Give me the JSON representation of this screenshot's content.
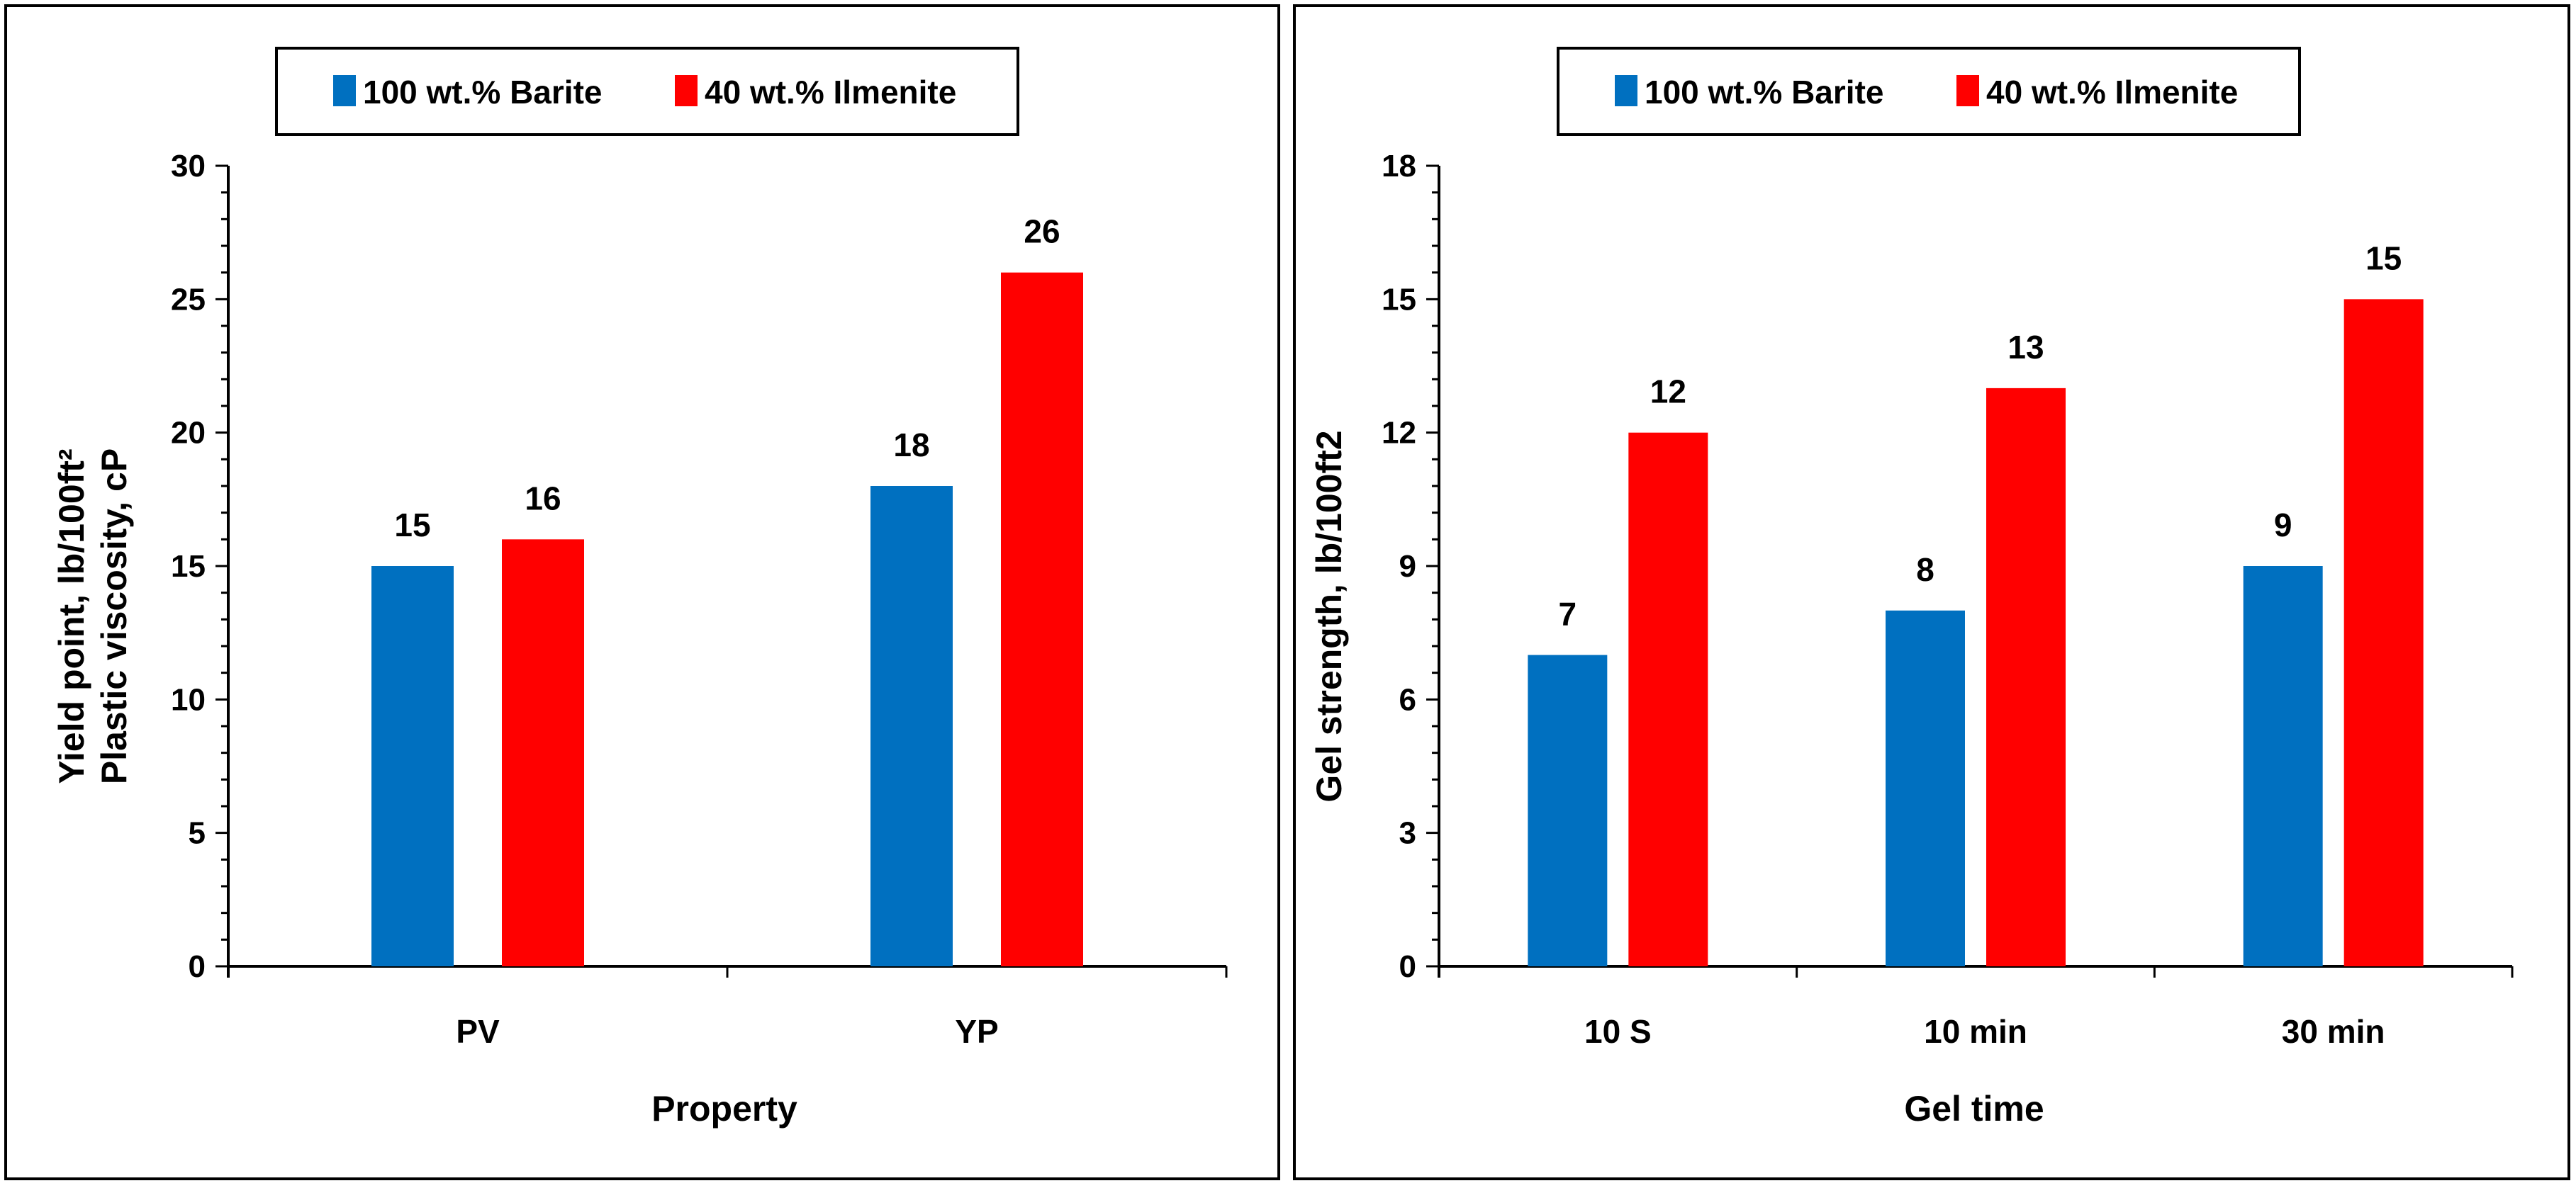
{
  "colors": {
    "barite": "#0070C0",
    "ilmenite": "#FF0000"
  },
  "chart_data": [
    {
      "type": "bar",
      "categories": [
        "PV",
        "YP"
      ],
      "series": [
        {
          "name": "100 wt.% Barite",
          "values": [
            15,
            18
          ]
        },
        {
          "name": "40 wt.% Ilmenite",
          "values": [
            16,
            26
          ]
        }
      ],
      "xlabel": "Property",
      "ylabel": [
        "Yield point, lb/100ft²",
        "Plastic viscosity, cP"
      ],
      "ylim": [
        0,
        30
      ],
      "yticks": [
        0,
        5,
        10,
        15,
        20,
        25,
        30
      ],
      "legend": "top-center",
      "grid": false
    },
    {
      "type": "bar",
      "categories": [
        "10 S",
        "10 min",
        "30 min"
      ],
      "series": [
        {
          "name": "100 wt.% Barite",
          "values": [
            7,
            8,
            9
          ]
        },
        {
          "name": "40 wt.% Ilmenite",
          "values": [
            12,
            13,
            15
          ]
        }
      ],
      "xlabel": "Gel time",
      "ylabel": [
        "Gel strength, lb/100ft2"
      ],
      "ylim": [
        0,
        18
      ],
      "yticks": [
        0,
        3,
        6,
        9,
        12,
        15,
        18
      ],
      "legend": "top-center",
      "grid": false
    }
  ]
}
